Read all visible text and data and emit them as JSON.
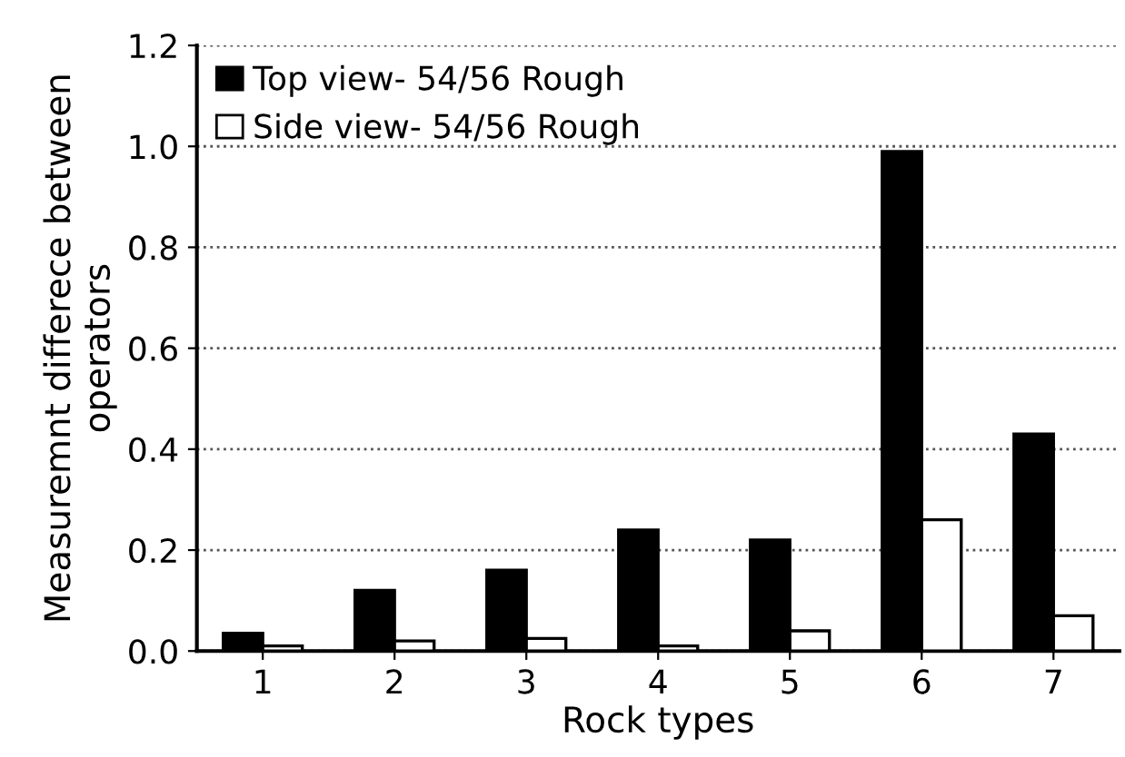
{
  "chart_data": {
    "type": "bar",
    "xlabel": "Rock types",
    "ylabel": "Measuremnt differece between\noperators",
    "categories": [
      "1",
      "2",
      "3",
      "4",
      "5",
      "6",
      "7"
    ],
    "series": [
      {
        "name": "Top view- 54/56 Rough",
        "color": "#000000",
        "values": [
          0.035,
          0.12,
          0.16,
          0.24,
          0.22,
          0.99,
          0.43
        ]
      },
      {
        "name": "Side view- 54/56 Rough",
        "color": "#ffffff",
        "values": [
          0.01,
          0.02,
          0.025,
          0.01,
          0.04,
          0.26,
          0.07
        ]
      }
    ],
    "ylim": [
      0,
      1.2
    ],
    "yticks": [
      {
        "value": 0,
        "label": "0.0"
      },
      0.2,
      0.4,
      0.6,
      0.8,
      {
        "value": 1,
        "label": "1.0"
      },
      1.2
    ],
    "grid": "y",
    "legend": "top left"
  }
}
